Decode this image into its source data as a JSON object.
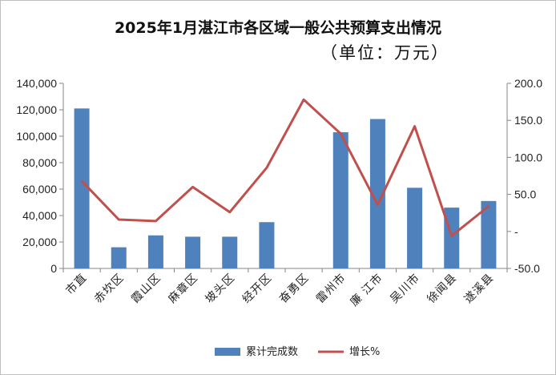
{
  "chart_data": {
    "type": "bar",
    "title": "2025年1月湛江市各区域一般公共预算支出情况",
    "subtitle": "（单位：万元）",
    "categories": [
      "市直",
      "赤坎区",
      "霞山区",
      "麻章区",
      "坡头区",
      "经开区",
      "奋勇区",
      "雷州市",
      "廉 江市",
      "吴川市",
      "徐闻县",
      "遂溪县"
    ],
    "series": [
      {
        "name": "累计完成数",
        "type": "bar",
        "axis": "left",
        "color": "#4f81bd",
        "values": [
          121000,
          16000,
          25000,
          24000,
          24000,
          35000,
          null,
          103000,
          113000,
          61000,
          46000,
          51000
        ]
      },
      {
        "name": "增长%",
        "type": "line",
        "axis": "right",
        "color": "#c0504d",
        "values": [
          68,
          16,
          14,
          60,
          26,
          86,
          178,
          132,
          36,
          142,
          -6,
          34
        ]
      }
    ],
    "y_left": {
      "min": 0,
      "max": 140000,
      "step": 20000,
      "ticks": [
        "0",
        "20,000",
        "40,000",
        "60,000",
        "80,000",
        "100,000",
        "120,000",
        "140,000"
      ]
    },
    "y_right": {
      "min": -50,
      "max": 200,
      "step": 50,
      "ticks": [
        "-50.0",
        "-",
        "50.0",
        "100.0",
        "150.0",
        "200.0"
      ]
    },
    "legend": {
      "position": "bottom",
      "items": [
        {
          "label": "累计完成数",
          "color": "#4f81bd",
          "kind": "bar"
        },
        {
          "label": "增长%",
          "color": "#c0504d",
          "kind": "line"
        }
      ]
    },
    "grid": false
  }
}
